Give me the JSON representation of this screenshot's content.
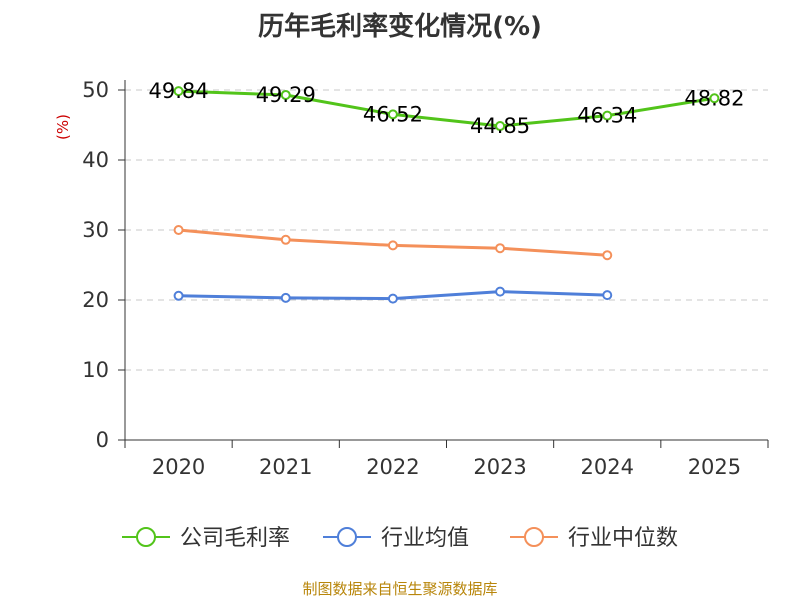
{
  "chart_data": {
    "type": "line",
    "title": "历年毛利率变化情况(%)",
    "ylabel": "(%)",
    "xlabel": "",
    "categories": [
      "2020",
      "2021",
      "2022",
      "2023",
      "2024",
      "2025"
    ],
    "ylim": [
      0,
      50
    ],
    "yticks": [
      0,
      10,
      20,
      30,
      40,
      50
    ],
    "grid": true,
    "legend_position": "bottom",
    "series": [
      {
        "name": "公司毛利率",
        "color": "#52c41a",
        "values": [
          49.84,
          49.29,
          46.52,
          44.85,
          46.34,
          48.82
        ],
        "labels": [
          "49.84",
          "49.29",
          "46.52",
          "44.85",
          "46.34",
          "48.82"
        ]
      },
      {
        "name": "行业均值",
        "color": "#4f7fd9",
        "values": [
          20.6,
          20.3,
          20.2,
          21.2,
          20.7,
          null
        ]
      },
      {
        "name": "行业中位数",
        "color": "#f4905a",
        "values": [
          30.0,
          28.6,
          27.8,
          27.4,
          26.4,
          null
        ]
      }
    ]
  },
  "source_note": "制图数据来自恒生聚源数据库"
}
